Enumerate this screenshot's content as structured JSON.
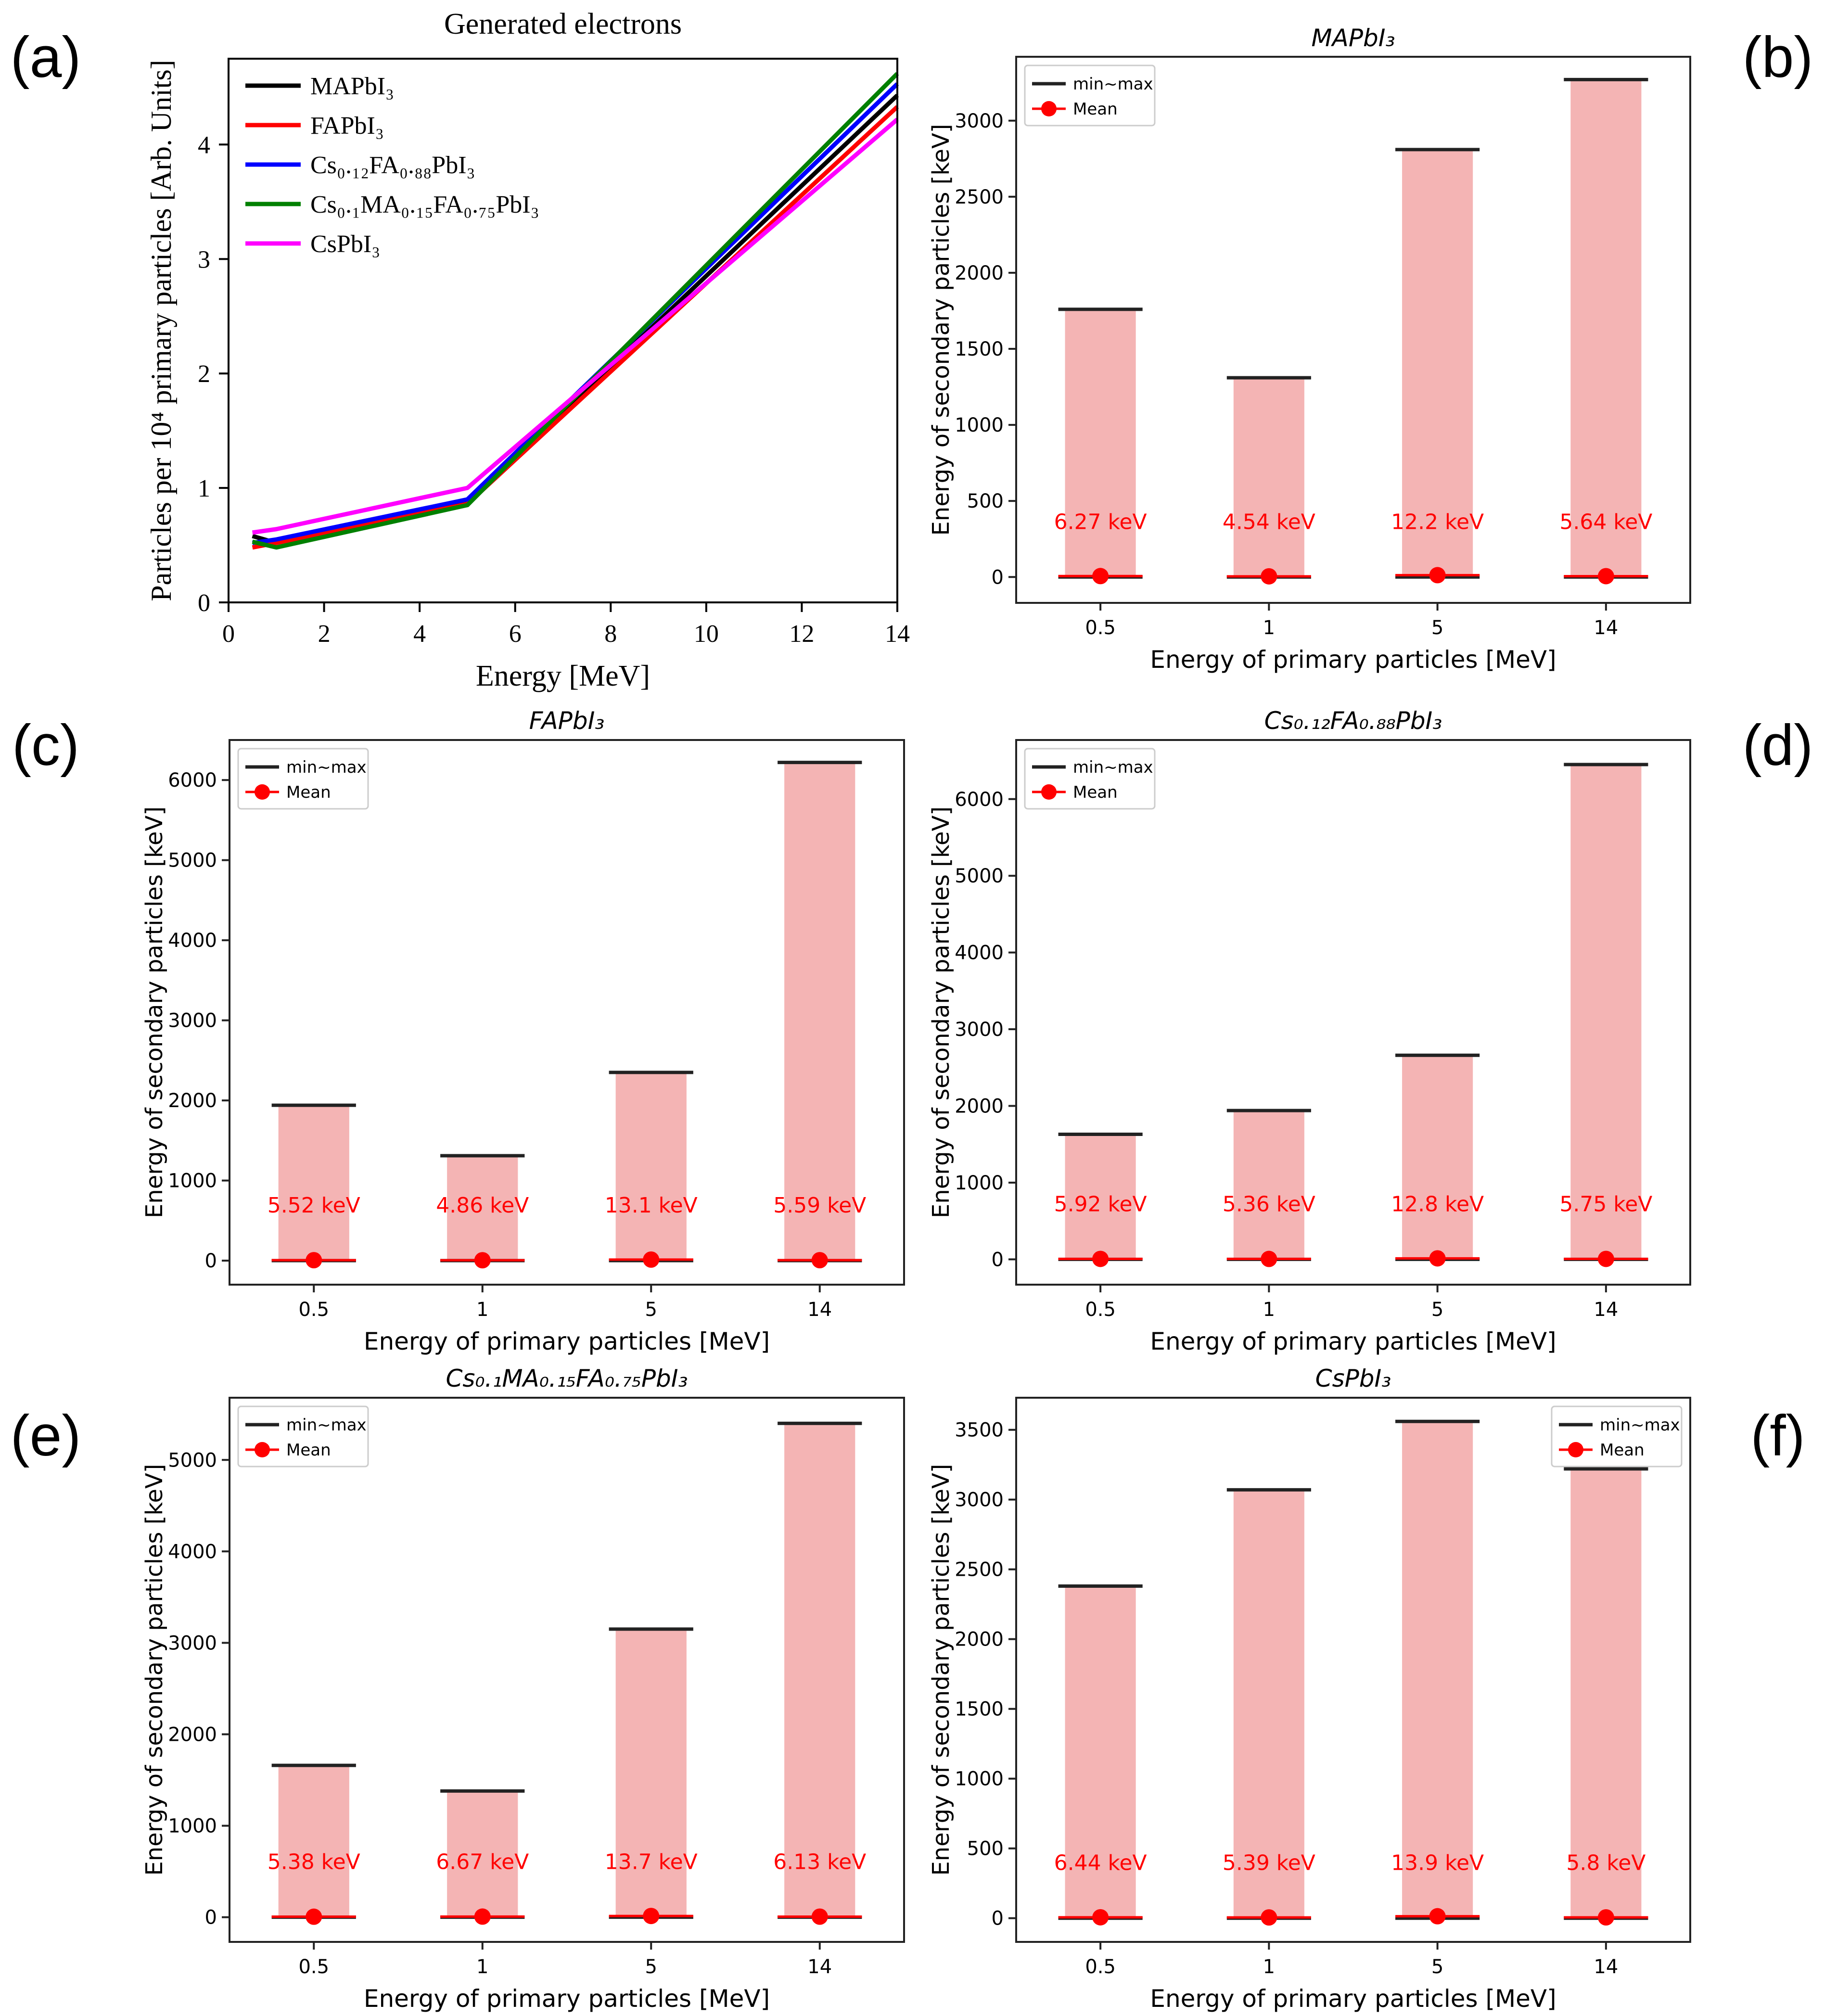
{
  "panel_labels": [
    "(a)",
    "(b)",
    "(c)",
    "(d)",
    "(e)",
    "(f)"
  ],
  "chart_data": [
    {
      "panel": "(a)",
      "type": "line",
      "title": "Generated electrons",
      "xlabel": "Energy [MeV]",
      "ylabel": "Particles per 10⁴ primary particles [Arb. Units]",
      "xlim": [
        0,
        14
      ],
      "ylim": [
        0,
        4.75
      ],
      "xticks": [
        0,
        2,
        4,
        6,
        8,
        10,
        12,
        14
      ],
      "yticks": [
        0,
        1,
        2,
        3,
        4
      ],
      "legend_position": "upper-left",
      "series": [
        {
          "name": "MAPbI₃",
          "color": "#000000",
          "x": [
            0.5,
            1,
            5,
            14
          ],
          "y": [
            0.58,
            0.52,
            0.88,
            4.43
          ]
        },
        {
          "name": "FAPbI₃",
          "color": "#ff0000",
          "x": [
            0.5,
            1,
            5,
            14
          ],
          "y": [
            0.48,
            0.52,
            0.86,
            4.33
          ]
        },
        {
          "name": "Cs₀.₁₂FA₀.₈₈PbI₃",
          "color": "#0000ff",
          "x": [
            0.5,
            1,
            5,
            14
          ],
          "y": [
            0.52,
            0.55,
            0.9,
            4.53
          ]
        },
        {
          "name": "Cs₀.₁MA₀.₁₅FA₀.₇₅PbI₃",
          "color": "#008000",
          "x": [
            0.5,
            1,
            5,
            14
          ],
          "y": [
            0.53,
            0.48,
            0.85,
            4.62
          ]
        },
        {
          "name": "CsPbI₃",
          "color": "#ff00ff",
          "x": [
            0.5,
            1,
            5,
            14
          ],
          "y": [
            0.61,
            0.64,
            1.0,
            4.22
          ]
        }
      ]
    },
    {
      "panel": "(b)",
      "type": "bar",
      "title": "MAPbI₃",
      "xlabel": "Energy of primary particles [MeV]",
      "ylabel": "Energy of secondary particles [keV]",
      "categories": [
        "0.5",
        "1",
        "5",
        "14"
      ],
      "ylim": [
        -170,
        3420
      ],
      "yticks": [
        0,
        500,
        1000,
        1500,
        2000,
        2500,
        3000
      ],
      "legend_position": "upper-left",
      "legend": [
        "min~max",
        "Mean"
      ],
      "min": [
        0,
        0,
        0,
        0
      ],
      "max": [
        1760,
        1310,
        2810,
        3270
      ],
      "mean": [
        6.27,
        4.54,
        12.2,
        5.64
      ],
      "mean_labels": [
        "6.27 keV",
        "4.54 keV",
        "12.2 keV",
        "5.64 keV"
      ]
    },
    {
      "panel": "(c)",
      "type": "bar",
      "title": "FAPbI₃",
      "xlabel": "Energy of primary particles [MeV]",
      "ylabel": "Energy of secondary particles [keV]",
      "categories": [
        "0.5",
        "1",
        "5",
        "14"
      ],
      "ylim": [
        -300,
        6500
      ],
      "yticks": [
        0,
        1000,
        2000,
        3000,
        4000,
        5000,
        6000
      ],
      "legend_position": "upper-left",
      "legend": [
        "min~max",
        "Mean"
      ],
      "min": [
        0,
        0,
        0,
        0
      ],
      "max": [
        1940,
        1310,
        2350,
        6220
      ],
      "mean": [
        5.52,
        4.86,
        13.1,
        5.59
      ],
      "mean_labels": [
        "5.52 keV",
        "4.86 keV",
        "13.1 keV",
        "5.59 keV"
      ]
    },
    {
      "panel": "(d)",
      "type": "bar",
      "title": "Cs₀.₁₂FA₀.₈₈PbI₃",
      "xlabel": "Energy of primary particles [MeV]",
      "ylabel": "Energy of secondary particles [keV]",
      "categories": [
        "0.5",
        "1",
        "5",
        "14"
      ],
      "ylim": [
        -330,
        6770
      ],
      "yticks": [
        0,
        1000,
        2000,
        3000,
        4000,
        5000,
        6000
      ],
      "legend_position": "upper-left",
      "legend": [
        "min~max",
        "Mean"
      ],
      "min": [
        0,
        0,
        0,
        0
      ],
      "max": [
        1630,
        1940,
        2660,
        6450
      ],
      "mean": [
        5.92,
        5.36,
        12.8,
        5.75
      ],
      "mean_labels": [
        "5.92 keV",
        "5.36 keV",
        "12.8 keV",
        "5.75 keV"
      ]
    },
    {
      "panel": "(e)",
      "type": "bar",
      "title": "Cs₀.₁MA₀.₁₅FA₀.₇₅PbI₃",
      "xlabel": "Energy of primary particles [MeV]",
      "ylabel": "Energy of secondary particles [keV]",
      "categories": [
        "0.5",
        "1",
        "5",
        "14"
      ],
      "ylim": [
        -270,
        5680
      ],
      "yticks": [
        0,
        1000,
        2000,
        3000,
        4000,
        5000
      ],
      "legend_position": "upper-left",
      "legend": [
        "min~max",
        "Mean"
      ],
      "min": [
        0,
        0,
        0,
        0
      ],
      "max": [
        1660,
        1380,
        3150,
        5400
      ],
      "mean": [
        5.38,
        6.67,
        13.7,
        6.13
      ],
      "mean_labels": [
        "5.38 keV",
        "6.67 keV",
        "13.7 keV",
        "6.13 keV"
      ]
    },
    {
      "panel": "(f)",
      "type": "bar",
      "title": "CsPbI₃",
      "xlabel": "Energy of primary particles [MeV]",
      "ylabel": "Energy of secondary particles [keV]",
      "categories": [
        "0.5",
        "1",
        "5",
        "14"
      ],
      "ylim": [
        -170,
        3730
      ],
      "yticks": [
        0,
        500,
        1000,
        1500,
        2000,
        2500,
        3000,
        3500
      ],
      "legend_position": "upper-right",
      "legend": [
        "min~max",
        "Mean"
      ],
      "min": [
        0,
        0,
        0,
        0
      ],
      "max": [
        2380,
        3070,
        3560,
        3220
      ],
      "mean": [
        6.44,
        5.39,
        13.9,
        5.8
      ],
      "mean_labels": [
        "6.44 keV",
        "5.39 keV",
        "13.9 keV",
        "5.8 keV"
      ]
    }
  ]
}
